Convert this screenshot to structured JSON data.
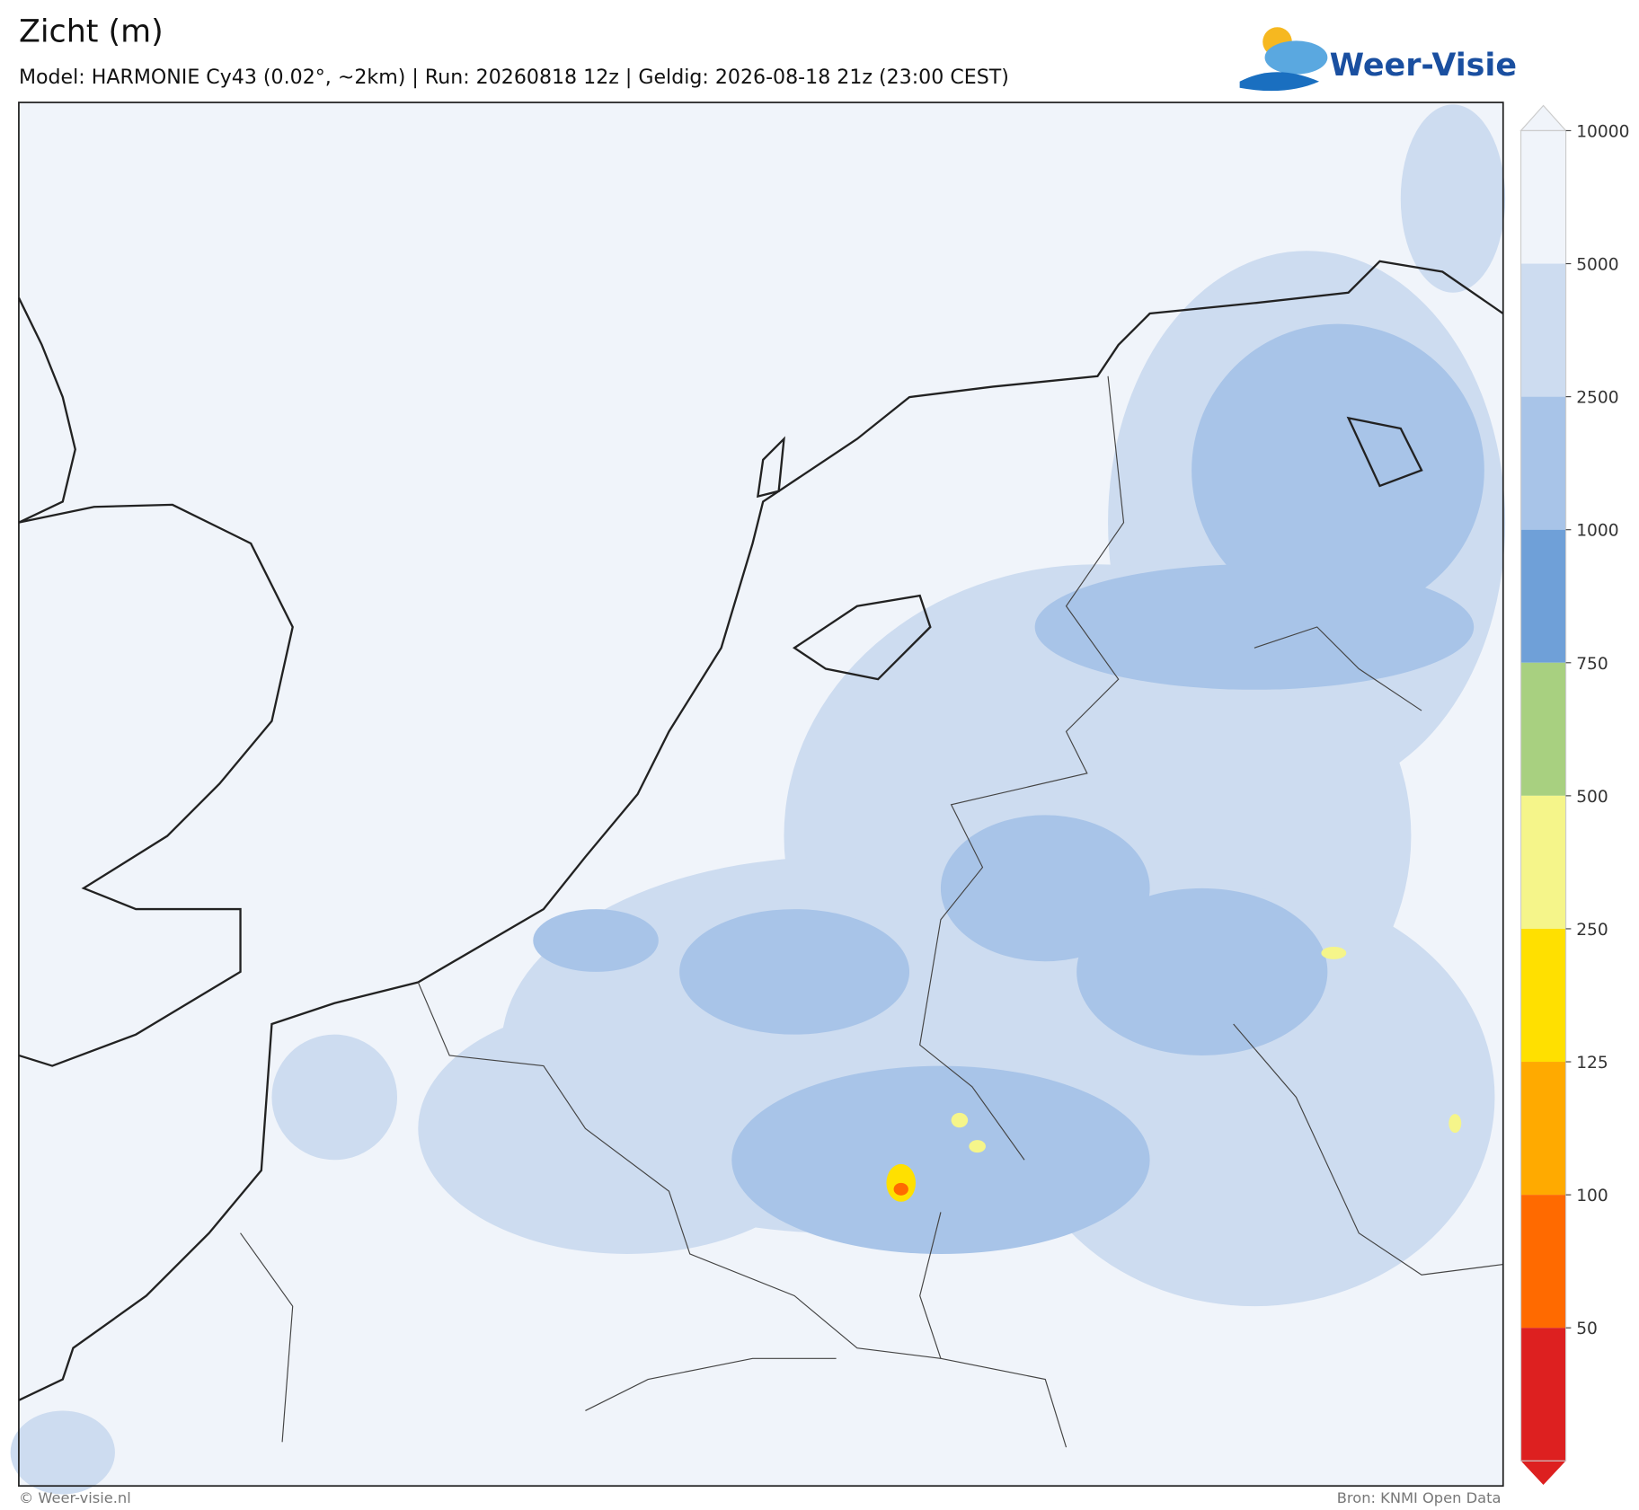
{
  "header": {
    "title": "Zicht (m)",
    "subtitle": "Model: HARMONIE Cy43 (0.02°, ~2km)  |  Run: 20260818 12z  |  Geldig: 2026-08-18 21z (23:00 CEST)",
    "logo": "Weer-Visie"
  },
  "colorbar": {
    "ticks": [
      10000,
      5000,
      2500,
      1000,
      750,
      500,
      250,
      125,
      100,
      50
    ],
    "colors": [
      "#f0f4fa",
      "#cddcf0",
      "#a8c4e8",
      "#6fa0d8",
      "#a8d080",
      "#f5f58a",
      "#ffe000",
      "#ffaa00",
      "#ff6a00",
      "#dd2020"
    ]
  },
  "footer": {
    "left": "© Weer-visie.nl",
    "right": "Bron: KNMI Open Data"
  }
}
